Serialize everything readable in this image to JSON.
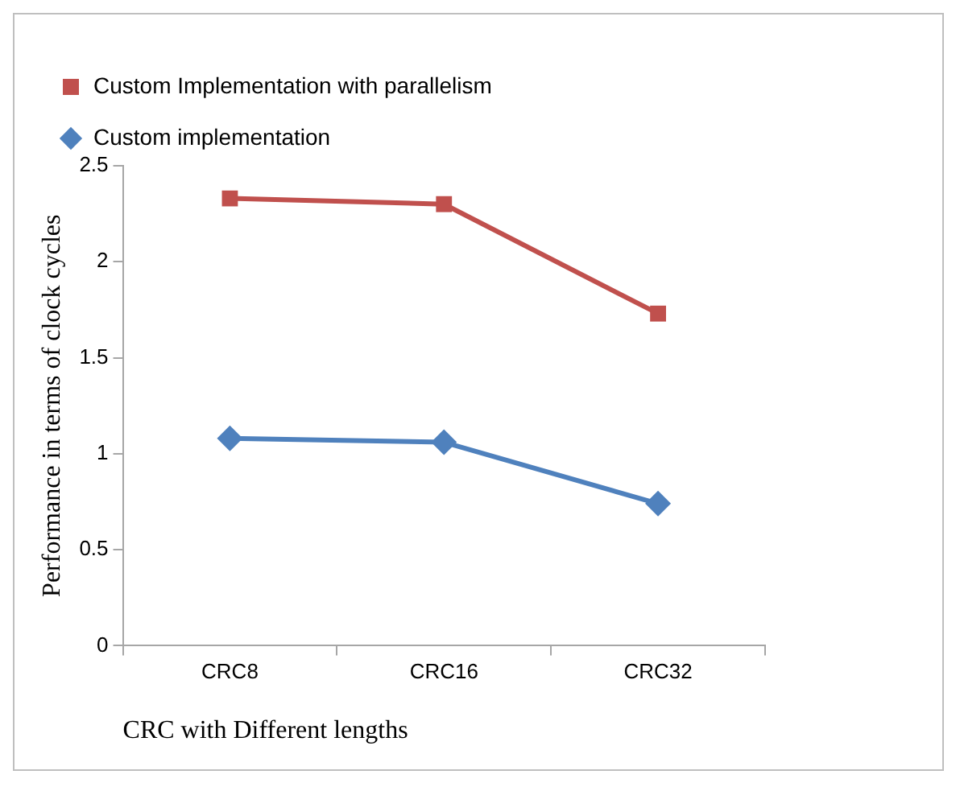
{
  "chart_data": {
    "type": "line",
    "xlabel": "CRC with Different lengths",
    "ylabel": "Performance in terms of clock cycles",
    "categories": [
      "CRC8",
      "CRC16",
      "CRC32"
    ],
    "series": [
      {
        "name": "Custom Implementation with parallelism",
        "color": "#c0504d",
        "marker": "square",
        "values": [
          2.33,
          2.3,
          1.73
        ]
      },
      {
        "name": "Custom implementation",
        "color": "#4f81bd",
        "marker": "diamond",
        "values": [
          1.08,
          1.06,
          0.74
        ]
      }
    ],
    "ylim": [
      0,
      2.5
    ],
    "yticks": [
      0,
      0.5,
      1,
      1.5,
      2,
      2.5
    ],
    "grid": false,
    "legend": "top"
  }
}
